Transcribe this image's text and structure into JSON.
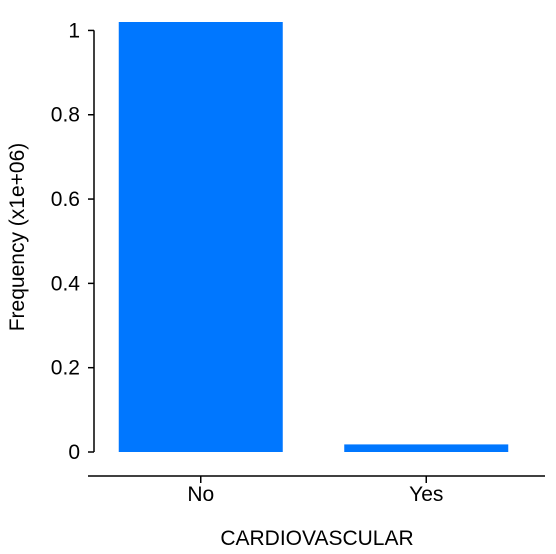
{
  "chart_data": {
    "type": "bar",
    "categories": [
      "No",
      "Yes"
    ],
    "values": [
      1.02,
      0.018
    ],
    "xlabel": "CARDIOVASCULAR",
    "ylabel": "Frequency (x1e+06)",
    "ylim": [
      0,
      1.02
    ],
    "yticks": [
      0,
      0.2,
      0.4,
      0.6,
      0.8,
      1
    ],
    "ytick_labels": [
      "0",
      "0.2",
      "0.4",
      "0.6",
      "0.8",
      "1"
    ],
    "grid": false,
    "bar_color": "#0077ff"
  }
}
